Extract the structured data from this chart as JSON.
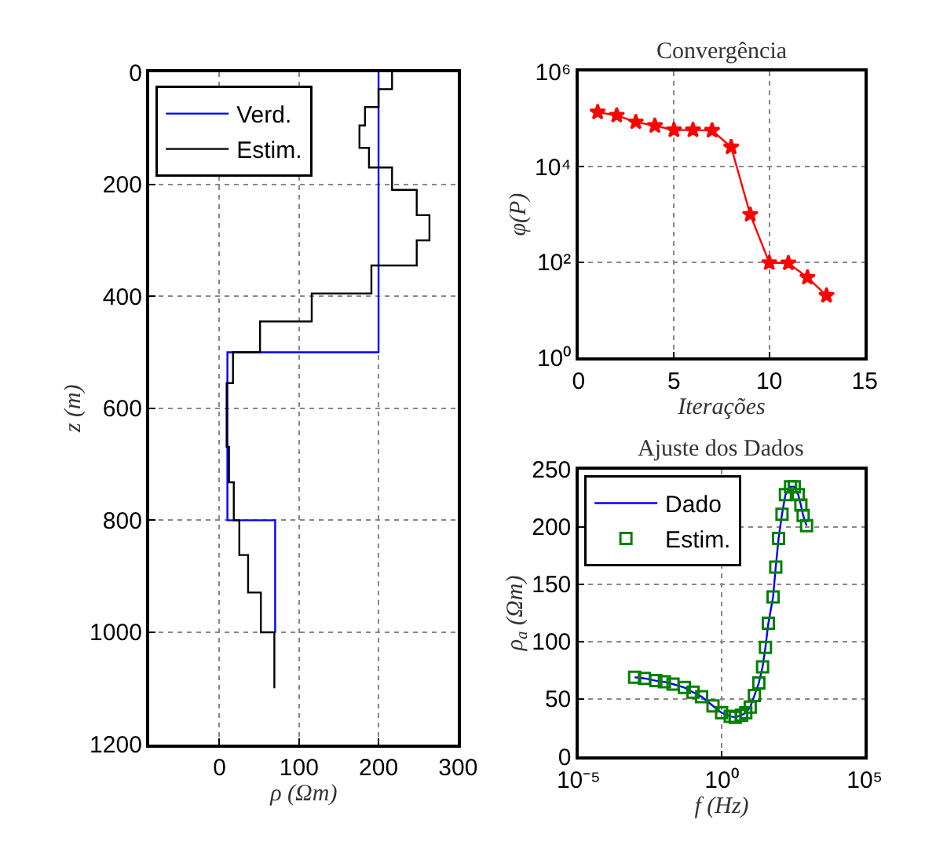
{
  "chart_data": [
    {
      "type": "line",
      "xlabel": "ρ (Ωm)",
      "ylabel": "z (m)",
      "xlim": [
        -88,
        300
      ],
      "xticks": [
        0,
        100,
        200,
        300
      ],
      "ylim": [
        1200,
        0
      ],
      "yticks": [
        0,
        200,
        400,
        600,
        800,
        1000,
        1200
      ],
      "grid": true,
      "legend": "top left",
      "series": [
        {
          "name": "Verd.",
          "color": "#0000ff",
          "x": [
            200,
            200,
            10,
            10,
            70,
            70
          ],
          "values": [
            0,
            500,
            500,
            800,
            800,
            1000
          ]
        },
        {
          "name": "Estim.",
          "color": "#000000",
          "x": [
            217,
            217,
            200,
            200,
            183,
            183,
            176,
            176,
            188,
            188,
            217,
            217,
            248,
            248,
            264,
            264,
            248,
            248,
            191,
            191,
            116,
            116,
            51,
            51,
            17,
            17,
            9,
            9,
            12,
            12,
            18,
            18,
            25,
            25,
            36,
            36,
            52,
            52,
            69,
            69
          ],
          "values": [
            0,
            30,
            30,
            62,
            62,
            95,
            95,
            135,
            135,
            170,
            170,
            210,
            210,
            255,
            255,
            300,
            300,
            345,
            345,
            395,
            395,
            445,
            445,
            500,
            500,
            555,
            555,
            669,
            669,
            732,
            732,
            800,
            800,
            862,
            862,
            929,
            929,
            1000,
            1000,
            1100
          ]
        }
      ]
    },
    {
      "type": "line",
      "title": "Convergência",
      "xlabel": "Iterações",
      "ylabel": "φ(P)",
      "log": "y",
      "xlim": [
        0,
        15
      ],
      "xticks": [
        0,
        5,
        10,
        15
      ],
      "ylim": [
        1,
        1000000
      ],
      "yticks": [
        {
          "value": 1,
          "label": "10⁰"
        },
        {
          "value": 100,
          "label": "10²"
        },
        {
          "value": 10000,
          "label": "10⁴"
        },
        {
          "value": 1000000,
          "label": "10⁶"
        }
      ],
      "grid": true,
      "marker": "star",
      "series": [
        {
          "color": "#ff0000",
          "x": [
            1,
            2,
            3,
            4,
            5,
            6,
            7,
            8,
            9,
            10,
            11,
            12,
            13
          ],
          "values": [
            140000,
            120000,
            87000,
            73000,
            59000,
            59000,
            58000,
            26000,
            1000,
            97,
            96,
            48,
            20
          ]
        }
      ]
    },
    {
      "type": "line",
      "title": "Ajuste dos Dados",
      "xlabel": "f (Hz)",
      "ylabel": "ρ$_{a}$ (Ωm)",
      "log": "x",
      "xlim": [
        1e-05,
        100000
      ],
      "xticks": [
        {
          "value": 1e-05,
          "label": "10⁻⁵"
        },
        {
          "value": 1,
          "label": "10⁰"
        },
        {
          "value": 100000,
          "label": "10⁵"
        }
      ],
      "ylim": [
        0,
        250
      ],
      "yticks": [
        0,
        50,
        100,
        150,
        200,
        250
      ],
      "grid": true,
      "legend": "top left",
      "series": [
        {
          "name": "Dado",
          "color": "#0000ff",
          "x": [
            0.00091,
            0.002,
            0.005,
            0.01,
            0.02,
            0.05,
            0.1,
            0.2,
            0.5,
            1,
            2,
            3,
            5,
            7,
            10,
            14,
            20,
            27,
            34,
            43,
            63,
            78,
            98,
            129,
            170,
            257,
            347,
            479,
            589,
            708,
            933
          ],
          "values": [
            69,
            68,
            66,
            65,
            63,
            60,
            56,
            52,
            44,
            38,
            35,
            34,
            36,
            38,
            43,
            53,
            64,
            78,
            95,
            116,
            139,
            165,
            190,
            211,
            228,
            235,
            235,
            228,
            219,
            210,
            201
          ]
        },
        {
          "name": "Estim.",
          "type": "scatter",
          "marker": "square",
          "color": "#008000",
          "x": [
            0.00091,
            0.002,
            0.005,
            0.01,
            0.02,
            0.05,
            0.1,
            0.2,
            0.5,
            1,
            2,
            3,
            5,
            7,
            10,
            14,
            20,
            27,
            34,
            43,
            63,
            78,
            98,
            129,
            170,
            257,
            347,
            479,
            589,
            708,
            933
          ],
          "values": [
            69,
            68,
            66,
            65,
            63,
            60,
            56,
            52,
            44,
            38,
            35,
            34,
            36,
            38,
            43,
            53,
            64,
            78,
            95,
            116,
            139,
            165,
            190,
            211,
            228,
            235,
            235,
            228,
            219,
            210,
            201
          ]
        }
      ]
    }
  ]
}
